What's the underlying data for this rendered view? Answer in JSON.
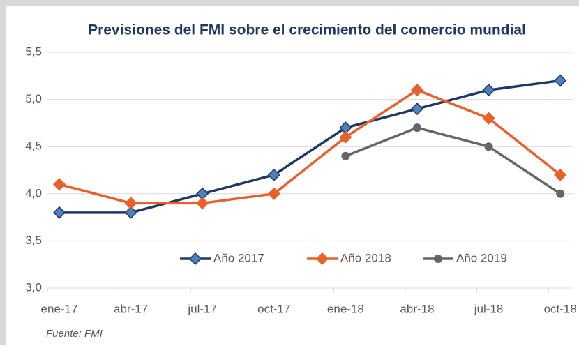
{
  "chart_data": {
    "type": "line",
    "title": "Previsiones del FMI sobre el crecimiento del comercio mundial",
    "source": "Fuente: FMI",
    "categories": [
      "ene-17",
      "abr-17",
      "jul-17",
      "oct-17",
      "ene-18",
      "abr-18",
      "jul-18",
      "oct-18"
    ],
    "series": [
      {
        "name": "Año 2017",
        "color": "#1f3864",
        "marker_color": "#4f81bd",
        "marker": "diamond",
        "values": [
          3.8,
          3.8,
          4.0,
          4.2,
          4.7,
          4.9,
          5.1,
          5.2
        ]
      },
      {
        "name": "Año 2018",
        "color": "#e8602c",
        "marker_color": "#e8602c",
        "marker": "diamond",
        "values": [
          4.1,
          3.9,
          3.9,
          4.0,
          4.6,
          5.1,
          4.8,
          4.2
        ]
      },
      {
        "name": "Año 2019",
        "color": "#666666",
        "marker_color": "#666666",
        "marker": "circle",
        "values": [
          null,
          null,
          null,
          null,
          4.4,
          4.7,
          4.5,
          4.0
        ]
      }
    ],
    "ylim": [
      3.0,
      5.5
    ],
    "yticks": [
      {
        "value": 3.0,
        "label": "3,0"
      },
      {
        "value": 3.5,
        "label": "3,5"
      },
      {
        "value": 4.0,
        "label": "4,0"
      },
      {
        "value": 4.5,
        "label": "4,5"
      },
      {
        "value": 5.0,
        "label": "5,0"
      },
      {
        "value": 5.5,
        "label": "5,5"
      }
    ],
    "grid": true,
    "legend": "bottom"
  }
}
